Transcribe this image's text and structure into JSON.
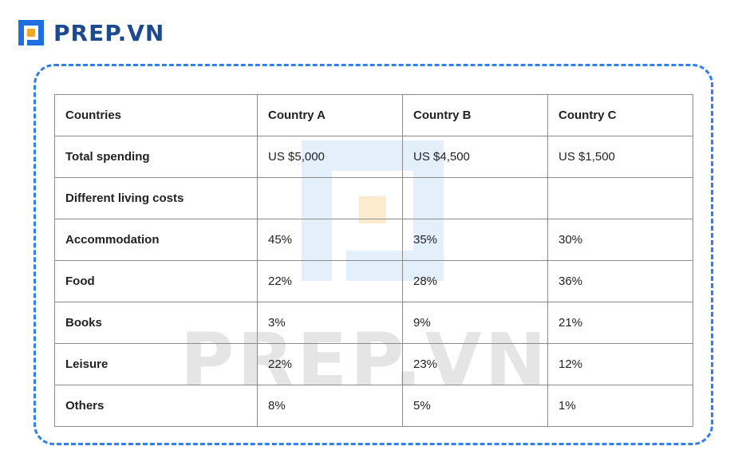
{
  "brand": {
    "name": "PREP.VN",
    "watermark": "PREP.VN",
    "icon": "prep-logo-icon"
  },
  "colors": {
    "frame": "#2f80e8",
    "brand_blue": "#1c4a8c",
    "accent_orange": "#f5a623"
  },
  "chart_data": {
    "type": "table",
    "columns": [
      "Countries",
      "Country A",
      "Country B",
      "Country C"
    ],
    "rows": [
      [
        "Total spending",
        "US $5,000",
        "US $4,500",
        "US $1,500"
      ],
      [
        "Different living costs",
        "",
        "",
        ""
      ],
      [
        "Accommodation",
        "45%",
        "35%",
        "30%"
      ],
      [
        "Food",
        "22%",
        "28%",
        "36%"
      ],
      [
        "Books",
        "3%",
        "9%",
        "21%"
      ],
      [
        "Leisure",
        "22%",
        "23%",
        "12%"
      ],
      [
        "Others",
        "8%",
        "5%",
        "1%"
      ]
    ]
  }
}
